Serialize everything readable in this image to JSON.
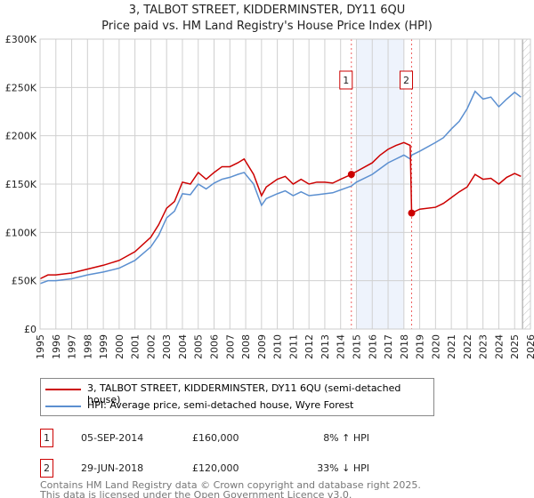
{
  "title": "3, TALBOT STREET, KIDDERMINSTER, DY11 6QU",
  "subtitle": "Price paid vs. HM Land Registry's House Price Index (HPI)",
  "chart_data": {
    "type": "line",
    "ylim": [
      0,
      300000
    ],
    "xlim": [
      1995,
      2026
    ],
    "yticks": [
      {
        "v": 0,
        "label": "£0"
      },
      {
        "v": 50000,
        "label": "£50K"
      },
      {
        "v": 100000,
        "label": "£100K"
      },
      {
        "v": 150000,
        "label": "£150K"
      },
      {
        "v": 200000,
        "label": "£200K"
      },
      {
        "v": 250000,
        "label": "£250K"
      },
      {
        "v": 300000,
        "label": "£300K"
      }
    ],
    "xticks": [
      "1995",
      "1996",
      "1997",
      "1998",
      "1999",
      "2000",
      "2001",
      "2002",
      "2003",
      "2004",
      "2005",
      "2006",
      "2007",
      "2008",
      "2009",
      "2010",
      "2011",
      "2012",
      "2013",
      "2014",
      "2015",
      "2016",
      "2017",
      "2018",
      "2019",
      "2020",
      "2021",
      "2022",
      "2023",
      "2024",
      "2025",
      "2026"
    ],
    "shaded_range": [
      2015,
      2018
    ],
    "hatched_from": 2025.5,
    "markers": [
      {
        "label": "1",
        "x": 2014.68,
        "y": 160000
      },
      {
        "label": "2",
        "x": 2018.49,
        "y": 120000
      }
    ],
    "series": [
      {
        "name": "3, TALBOT STREET, KIDDERMINSTER, DY11 6QU (semi-detached house)",
        "color": "#cc0000",
        "x": [
          1995,
          1995.5,
          1996,
          1997,
          1998,
          1999,
          2000,
          2001,
          2002,
          2002.5,
          2003,
          2003.5,
          2004,
          2004.5,
          2005,
          2005.5,
          2006,
          2006.5,
          2007,
          2007.5,
          2007.9,
          2008.5,
          2009,
          2009.3,
          2010,
          2010.5,
          2011,
          2011.5,
          2012,
          2012.5,
          2013,
          2013.5,
          2014,
          2014.68,
          2015,
          2016,
          2016.5,
          2017,
          2017.5,
          2018,
          2018.4,
          2018.49,
          2019,
          2020,
          2020.5,
          2021,
          2021.5,
          2022,
          2022.5,
          2023,
          2023.5,
          2024,
          2024.5,
          2025,
          2025.4
        ],
        "y": [
          52000,
          56000,
          56000,
          58000,
          62000,
          66000,
          71000,
          80000,
          95000,
          108000,
          125000,
          132000,
          152000,
          150000,
          162000,
          155000,
          162000,
          168000,
          168000,
          172000,
          176000,
          160000,
          138000,
          147000,
          155000,
          158000,
          150000,
          155000,
          150000,
          152000,
          152000,
          151000,
          155000,
          160000,
          163000,
          172000,
          180000,
          186000,
          190000,
          193000,
          190000,
          120000,
          124000,
          126000,
          130000,
          136000,
          142000,
          147000,
          160000,
          155000,
          156000,
          150000,
          157000,
          161000,
          158000
        ]
      },
      {
        "name": "HPI: Average price, semi-detached house, Wyre Forest",
        "color": "#5b8fd0",
        "x": [
          1995,
          1995.5,
          1996,
          1997,
          1998,
          1999,
          2000,
          2001,
          2002,
          2002.5,
          2003,
          2003.5,
          2004,
          2004.5,
          2005,
          2005.5,
          2006,
          2006.5,
          2007,
          2007.5,
          2007.9,
          2008.5,
          2009,
          2009.3,
          2010,
          2010.5,
          2011,
          2011.5,
          2012,
          2012.5,
          2013,
          2013.5,
          2014,
          2014.68,
          2015,
          2016,
          2016.5,
          2017,
          2017.5,
          2018,
          2018.4,
          2018.49,
          2019,
          2020,
          2020.5,
          2021,
          2021.5,
          2022,
          2022.5,
          2023,
          2023.5,
          2024,
          2024.5,
          2025,
          2025.4
        ],
        "y": [
          47000,
          50000,
          50000,
          52000,
          56000,
          59000,
          63000,
          71000,
          85000,
          97000,
          115000,
          122000,
          140000,
          139000,
          150000,
          145000,
          151000,
          155000,
          157000,
          160000,
          162000,
          150000,
          128000,
          135000,
          140000,
          143000,
          138000,
          142000,
          138000,
          139000,
          140000,
          141000,
          144000,
          148000,
          152000,
          160000,
          166000,
          172000,
          176000,
          180000,
          176000,
          180000,
          184000,
          193000,
          198000,
          207000,
          215000,
          228000,
          246000,
          238000,
          240000,
          230000,
          238000,
          245000,
          240000
        ]
      }
    ]
  },
  "table": [
    {
      "n": "1",
      "date": "05-SEP-2014",
      "price": "£160,000",
      "hpi": "8% ↑ HPI"
    },
    {
      "n": "2",
      "date": "29-JUN-2018",
      "price": "£120,000",
      "hpi": "33% ↓ HPI"
    }
  ],
  "footer": [
    "Contains HM Land Registry data © Crown copyright and database right 2025.",
    "This data is licensed under the Open Government Licence v3.0."
  ]
}
